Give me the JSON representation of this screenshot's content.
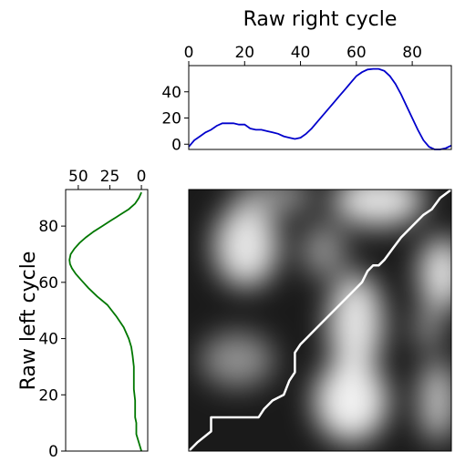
{
  "chart_data": [
    {
      "type": "line",
      "panel": "top",
      "title": "",
      "xlabel": "Raw right cycle",
      "ylabel": "",
      "xlim": [
        0,
        94
      ],
      "ylim": [
        -4,
        60
      ],
      "xticks": [
        0,
        20,
        40,
        60,
        80
      ],
      "yticks": [
        0,
        20,
        40
      ],
      "grid": false,
      "series": [
        {
          "color": "#0000cc",
          "x": [
            0,
            2,
            4,
            6,
            8,
            10,
            12,
            14,
            16,
            18,
            20,
            22,
            24,
            26,
            28,
            30,
            32,
            34,
            36,
            38,
            40,
            42,
            44,
            46,
            48,
            50,
            52,
            54,
            56,
            58,
            60,
            62,
            64,
            66,
            68,
            70,
            72,
            74,
            76,
            78,
            80,
            82,
            84,
            86,
            88,
            90,
            92,
            94
          ],
          "y": [
            -2,
            3,
            6,
            9,
            11,
            14,
            16,
            16,
            16,
            15,
            15,
            12,
            11,
            11,
            10,
            9,
            8,
            6,
            5,
            4,
            5,
            8,
            12,
            17,
            22,
            27,
            32,
            37,
            42,
            47,
            52,
            55,
            57,
            57.5,
            57.5,
            56,
            52,
            46,
            38,
            29,
            20,
            11,
            3,
            -2,
            -4,
            -4,
            -3,
            -1
          ]
        }
      ]
    },
    {
      "type": "line",
      "panel": "left",
      "title": "",
      "xlabel": "",
      "ylabel": "Raw left cycle",
      "xlim": [
        60,
        -5
      ],
      "ylim": [
        0,
        93
      ],
      "xticks": [
        50,
        25,
        0
      ],
      "yticks": [
        0,
        20,
        40,
        60,
        80
      ],
      "grid": false,
      "series": [
        {
          "color": "#007700",
          "x": [
            0,
            2,
            4,
            4,
            4,
            5,
            5,
            5,
            6,
            6,
            6,
            7,
            8,
            10,
            14,
            20,
            27,
            35,
            42,
            48,
            52,
            55,
            56.5,
            57,
            56,
            53,
            49,
            44,
            38,
            31,
            24,
            17,
            10,
            5,
            2,
            0
          ],
          "y": [
            0,
            3,
            6,
            8,
            10,
            12,
            15,
            18,
            22,
            26,
            30,
            34,
            37,
            40,
            44,
            48,
            52,
            55,
            58,
            61,
            63,
            65,
            66.5,
            68,
            70,
            72,
            74,
            76,
            78,
            80,
            82,
            84,
            86,
            88,
            90,
            92
          ]
        }
      ]
    },
    {
      "type": "heatmap",
      "panel": "main",
      "title": "",
      "xlabel": "",
      "ylabel": "",
      "xlim": [
        0,
        94
      ],
      "ylim": [
        0,
        93
      ],
      "colormap": "gray",
      "path_color": "#ffffff",
      "warping_path": {
        "x": [
          0,
          3,
          8,
          8,
          25,
          27,
          30,
          34,
          36,
          38,
          38,
          40,
          42,
          46,
          50,
          56,
          62,
          64,
          66,
          68,
          70,
          73,
          76,
          80,
          84,
          87,
          90,
          94
        ],
        "y": [
          0,
          3,
          7,
          12,
          12,
          15,
          18,
          20,
          25,
          28,
          35,
          38,
          40,
          44,
          48,
          54,
          60,
          64,
          66,
          66,
          68,
          72,
          76,
          80,
          84,
          86,
          90,
          93
        ]
      }
    }
  ]
}
